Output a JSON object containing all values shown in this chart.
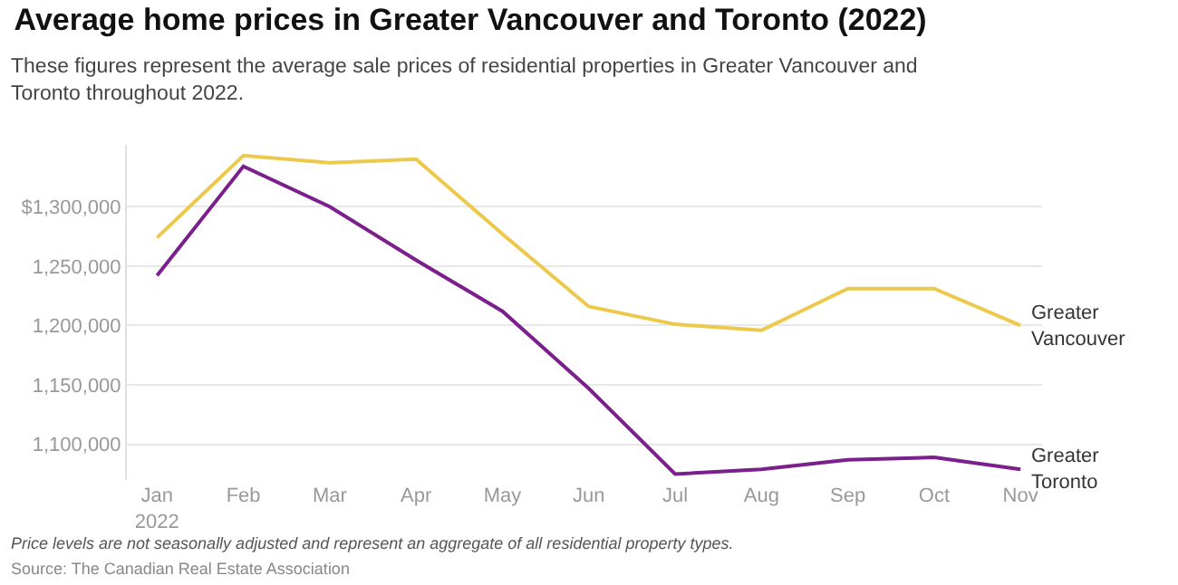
{
  "chart_data": {
    "type": "line",
    "title": "Average home prices in Greater Vancouver and Toronto (2022)",
    "subtitle": "These figures represent the average sale prices of residential properties in Greater Vancouver and Toronto throughout 2022.",
    "categories": [
      "Jan\n2022",
      "Feb",
      "Mar",
      "Apr",
      "May",
      "Jun",
      "Jul",
      "Aug",
      "Sep",
      "Oct",
      "Nov"
    ],
    "series": [
      {
        "name": "Greater Vancouver",
        "color": "#ecc94b",
        "values": [
          1274000,
          1343000,
          1337000,
          1340000,
          1277000,
          1216000,
          1201000,
          1196000,
          1231000,
          1231000,
          1200000
        ]
      },
      {
        "name": "Greater Toronto",
        "color": "#7b1f8c",
        "values": [
          1242000,
          1334000,
          1300000,
          1255000,
          1212000,
          1147000,
          1075000,
          1079000,
          1087000,
          1089000,
          1079000
        ]
      }
    ],
    "ylim": [
      1070000,
      1352000
    ],
    "yticks": [
      {
        "value": 1100000,
        "label": "1,100,000"
      },
      {
        "value": 1150000,
        "label": "1,150,000"
      },
      {
        "value": 1200000,
        "label": "1,200,000"
      },
      {
        "value": 1250000,
        "label": "1,250,000"
      },
      {
        "value": 1300000,
        "label": "$1,300,000"
      }
    ],
    "grid": "y",
    "legend": false,
    "marker": "none",
    "line_style": "solid",
    "annotations": [
      "Price levels are not seasonally adjusted and represent an aggregate of all residential property types.",
      "Source: The Canadian Real Estate Association"
    ]
  }
}
